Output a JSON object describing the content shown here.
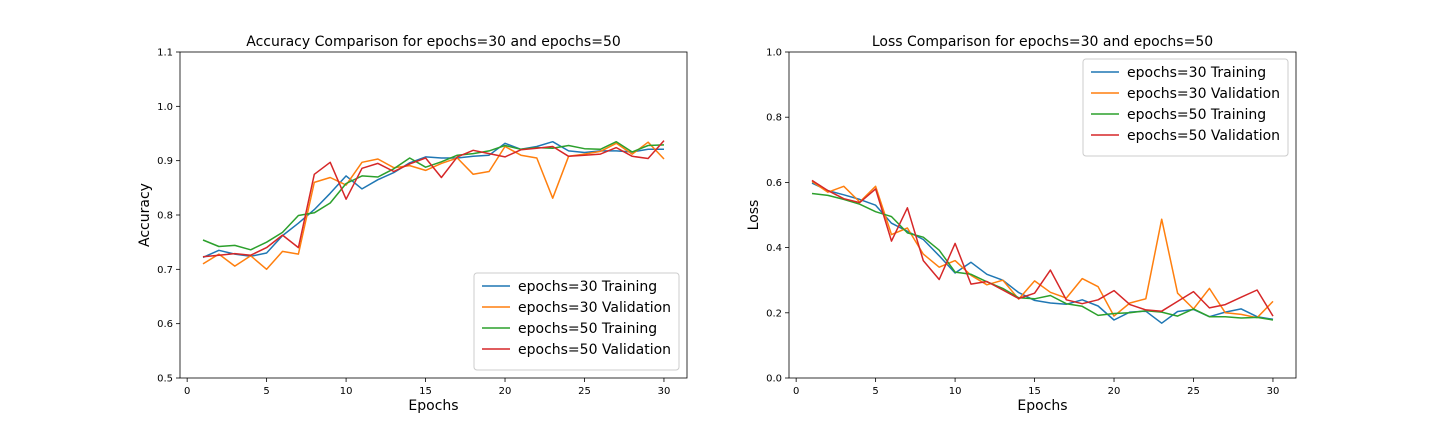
{
  "chart_data": [
    {
      "type": "line",
      "title": "Accuracy Comparison for epochs=30 and epochs=50",
      "xlabel": "Epochs",
      "ylabel": "Accuracy",
      "xlim": [
        -0.45,
        31.45
      ],
      "ylim": [
        0.5,
        1.1
      ],
      "xticks": [
        0,
        5,
        10,
        15,
        20,
        25,
        30
      ],
      "yticks": [
        0.5,
        0.6,
        0.7,
        0.8,
        0.9,
        1.0,
        1.1
      ],
      "ytick_labels": [
        "0.5",
        "0.6",
        "0.7",
        "0.8",
        "0.9",
        "1.0",
        "1.1"
      ],
      "grid": false,
      "legend_position": "lower-right",
      "x": [
        1,
        2,
        3,
        4,
        5,
        6,
        7,
        8,
        9,
        10,
        11,
        12,
        13,
        14,
        15,
        16,
        17,
        18,
        19,
        20,
        21,
        22,
        23,
        24,
        25,
        26,
        27,
        28,
        29,
        30
      ],
      "series": [
        {
          "name": "epochs=30 Training",
          "color": "#1f77b4",
          "values": [
            0.722,
            0.735,
            0.728,
            0.724,
            0.73,
            0.762,
            0.785,
            0.81,
            0.84,
            0.872,
            0.848,
            0.865,
            0.878,
            0.896,
            0.907,
            0.905,
            0.905,
            0.908,
            0.91,
            0.932,
            0.921,
            0.926,
            0.935,
            0.918,
            0.915,
            0.918,
            0.918,
            0.916,
            0.921,
            0.921
          ]
        },
        {
          "name": "epochs=30 Validation",
          "color": "#ff7f0e",
          "values": [
            0.71,
            0.728,
            0.706,
            0.725,
            0.7,
            0.733,
            0.728,
            0.86,
            0.869,
            0.855,
            0.897,
            0.903,
            0.887,
            0.891,
            0.882,
            0.895,
            0.905,
            0.875,
            0.88,
            0.926,
            0.91,
            0.905,
            0.831,
            0.908,
            0.912,
            0.917,
            0.932,
            0.912,
            0.934,
            0.903
          ]
        },
        {
          "name": "epochs=50 Training",
          "color": "#2ca02c",
          "values": [
            0.754,
            0.742,
            0.744,
            0.736,
            0.75,
            0.768,
            0.799,
            0.804,
            0.822,
            0.858,
            0.872,
            0.87,
            0.885,
            0.905,
            0.888,
            0.898,
            0.91,
            0.913,
            0.918,
            0.928,
            0.921,
            0.924,
            0.923,
            0.928,
            0.922,
            0.921,
            0.935,
            0.916,
            0.928,
            0.929
          ]
        },
        {
          "name": "epochs=50 Validation",
          "color": "#d62728",
          "values": [
            0.723,
            0.726,
            0.729,
            0.726,
            0.74,
            0.763,
            0.74,
            0.875,
            0.897,
            0.829,
            0.886,
            0.895,
            0.88,
            0.894,
            0.905,
            0.869,
            0.907,
            0.919,
            0.913,
            0.907,
            0.92,
            0.923,
            0.926,
            0.908,
            0.91,
            0.912,
            0.924,
            0.908,
            0.904,
            0.937
          ]
        }
      ]
    },
    {
      "type": "line",
      "title": "Loss Comparison for epochs=30 and epochs=50",
      "xlabel": "Epochs",
      "ylabel": "Loss",
      "xlim": [
        -0.45,
        31.45
      ],
      "ylim": [
        0.0,
        1.0
      ],
      "xticks": [
        0,
        5,
        10,
        15,
        20,
        25,
        30
      ],
      "yticks": [
        0.0,
        0.2,
        0.4,
        0.6,
        0.8,
        1.0
      ],
      "ytick_labels": [
        "0.0",
        "0.2",
        "0.4",
        "0.6",
        "0.8",
        "1.0"
      ],
      "grid": false,
      "legend_position": "upper-right",
      "x": [
        1,
        2,
        3,
        4,
        5,
        6,
        7,
        8,
        9,
        10,
        11,
        12,
        13,
        14,
        15,
        16,
        17,
        18,
        19,
        20,
        21,
        22,
        23,
        24,
        25,
        26,
        27,
        28,
        29,
        30
      ],
      "series": [
        {
          "name": "epochs=30 Training",
          "color": "#1f77b4",
          "values": [
            0.598,
            0.575,
            0.562,
            0.548,
            0.53,
            0.475,
            0.45,
            0.425,
            0.375,
            0.322,
            0.355,
            0.318,
            0.3,
            0.262,
            0.238,
            0.23,
            0.226,
            0.24,
            0.221,
            0.178,
            0.202,
            0.205,
            0.168,
            0.204,
            0.21,
            0.188,
            0.202,
            0.212,
            0.188,
            0.18
          ]
        },
        {
          "name": "epochs=30 Validation",
          "color": "#ff7f0e",
          "values": [
            0.603,
            0.57,
            0.588,
            0.54,
            0.588,
            0.44,
            0.46,
            0.38,
            0.34,
            0.36,
            0.315,
            0.286,
            0.3,
            0.242,
            0.298,
            0.263,
            0.245,
            0.305,
            0.28,
            0.19,
            0.23,
            0.243,
            0.487,
            0.26,
            0.212,
            0.275,
            0.2,
            0.195,
            0.185,
            0.235
          ]
        },
        {
          "name": "epochs=50 Training",
          "color": "#2ca02c",
          "values": [
            0.566,
            0.56,
            0.548,
            0.533,
            0.51,
            0.495,
            0.445,
            0.432,
            0.392,
            0.325,
            0.318,
            0.295,
            0.275,
            0.246,
            0.243,
            0.253,
            0.228,
            0.22,
            0.192,
            0.198,
            0.2,
            0.206,
            0.202,
            0.19,
            0.212,
            0.188,
            0.188,
            0.184,
            0.186,
            0.178
          ]
        },
        {
          "name": "epochs=50 Validation",
          "color": "#d62728",
          "values": [
            0.606,
            0.575,
            0.55,
            0.538,
            0.58,
            0.42,
            0.522,
            0.36,
            0.302,
            0.413,
            0.288,
            0.296,
            0.27,
            0.244,
            0.26,
            0.331,
            0.24,
            0.228,
            0.24,
            0.268,
            0.225,
            0.209,
            0.205,
            0.235,
            0.265,
            0.215,
            0.225,
            0.248,
            0.27,
            0.19
          ]
        }
      ]
    }
  ]
}
